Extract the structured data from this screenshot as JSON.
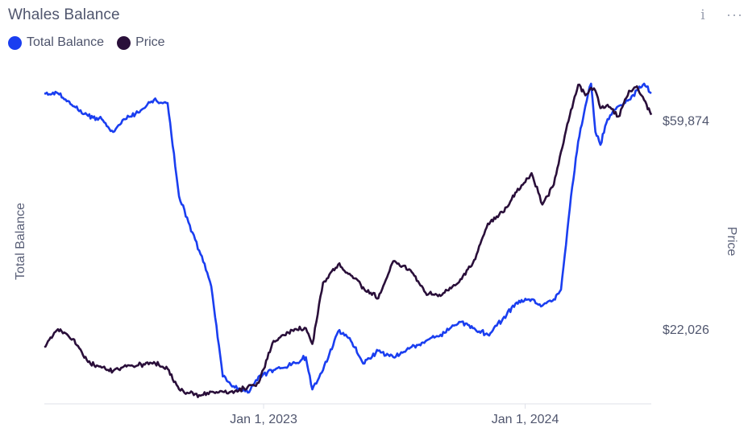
{
  "header": {
    "title": "Whales Balance",
    "info_icon": "info-icon",
    "more_icon": "more-options-icon"
  },
  "colors": {
    "total_balance": "#1a3ef0",
    "price": "#2a0f3a",
    "axis": "#dfe2ea",
    "tick_text": "#50566e"
  },
  "chart_data": {
    "type": "line",
    "xlabel": "",
    "ylabel_left": "Total Balance",
    "ylabel_right": "Price",
    "x_ticks": [
      "Jan 1, 2023",
      "Jan 1, 2024"
    ],
    "x_range": [
      "2022-03-01",
      "2024-06-25"
    ],
    "y_right_ticks": [
      "$59,874",
      "$22,026"
    ],
    "y_right_log_scale": true,
    "y_right_range": [
      15500,
      72500
    ],
    "y_left_range": [
      0,
      100
    ],
    "grid": false,
    "legend_position": "top-left",
    "series": [
      {
        "name": "Total Balance",
        "axis": "left",
        "points": [
          [
            "2022-03-01",
            96
          ],
          [
            "2022-03-20",
            96
          ],
          [
            "2022-04-10",
            92
          ],
          [
            "2022-05-01",
            89
          ],
          [
            "2022-05-20",
            88
          ],
          [
            "2022-06-05",
            84
          ],
          [
            "2022-06-20",
            88
          ],
          [
            "2022-07-10",
            90
          ],
          [
            "2022-08-01",
            94
          ],
          [
            "2022-08-20",
            93
          ],
          [
            "2022-09-05",
            64
          ],
          [
            "2022-09-20",
            55
          ],
          [
            "2022-10-05",
            46
          ],
          [
            "2022-10-20",
            36
          ],
          [
            "2022-11-05",
            8
          ],
          [
            "2022-11-20",
            5
          ],
          [
            "2022-12-10",
            3
          ],
          [
            "2022-12-25",
            8
          ],
          [
            "2023-01-15",
            10
          ],
          [
            "2023-02-10",
            12
          ],
          [
            "2023-03-01",
            14
          ],
          [
            "2023-03-10",
            4
          ],
          [
            "2023-03-25",
            10
          ],
          [
            "2023-04-15",
            22
          ],
          [
            "2023-05-01",
            20
          ],
          [
            "2023-05-20",
            12
          ],
          [
            "2023-06-10",
            16
          ],
          [
            "2023-07-01",
            14
          ],
          [
            "2023-07-25",
            17
          ],
          [
            "2023-08-15",
            19
          ],
          [
            "2023-09-05",
            21
          ],
          [
            "2023-10-01",
            25
          ],
          [
            "2023-10-20",
            23
          ],
          [
            "2023-11-10",
            21
          ],
          [
            "2023-12-01",
            26
          ],
          [
            "2023-12-20",
            31
          ],
          [
            "2024-01-10",
            32
          ],
          [
            "2024-01-25",
            30
          ],
          [
            "2024-02-10",
            32
          ],
          [
            "2024-02-20",
            35
          ],
          [
            "2024-03-05",
            64
          ],
          [
            "2024-03-15",
            81
          ],
          [
            "2024-03-25",
            92
          ],
          [
            "2024-04-02",
            99
          ],
          [
            "2024-04-08",
            84
          ],
          [
            "2024-04-15",
            80
          ],
          [
            "2024-04-25",
            88
          ],
          [
            "2024-05-10",
            92
          ],
          [
            "2024-05-25",
            94
          ],
          [
            "2024-06-05",
            97
          ],
          [
            "2024-06-15",
            99
          ],
          [
            "2024-06-25",
            96
          ]
        ]
      },
      {
        "name": "Price",
        "axis": "right",
        "points": [
          [
            "2022-03-01",
            20200
          ],
          [
            "2022-03-20",
            22000
          ],
          [
            "2022-04-10",
            21000
          ],
          [
            "2022-05-01",
            18800
          ],
          [
            "2022-05-20",
            18300
          ],
          [
            "2022-06-05",
            18000
          ],
          [
            "2022-06-20",
            18400
          ],
          [
            "2022-07-10",
            18500
          ],
          [
            "2022-08-01",
            18800
          ],
          [
            "2022-08-20",
            18200
          ],
          [
            "2022-09-05",
            16500
          ],
          [
            "2022-09-20",
            16200
          ],
          [
            "2022-10-05",
            16000
          ],
          [
            "2022-10-20",
            16300
          ],
          [
            "2022-11-05",
            16300
          ],
          [
            "2022-11-20",
            16200
          ],
          [
            "2022-12-10",
            16700
          ],
          [
            "2022-12-25",
            17000
          ],
          [
            "2023-01-15",
            20800
          ],
          [
            "2023-02-10",
            21900
          ],
          [
            "2023-03-01",
            22100
          ],
          [
            "2023-03-10",
            20500
          ],
          [
            "2023-03-25",
            27500
          ],
          [
            "2023-04-15",
            30000
          ],
          [
            "2023-05-01",
            28700
          ],
          [
            "2023-05-20",
            26900
          ],
          [
            "2023-06-10",
            25500
          ],
          [
            "2023-07-01",
            30500
          ],
          [
            "2023-07-25",
            29200
          ],
          [
            "2023-08-15",
            26200
          ],
          [
            "2023-09-05",
            25800
          ],
          [
            "2023-10-01",
            27600
          ],
          [
            "2023-10-20",
            30200
          ],
          [
            "2023-11-10",
            36500
          ],
          [
            "2023-12-01",
            38500
          ],
          [
            "2023-12-20",
            42500
          ],
          [
            "2024-01-10",
            46500
          ],
          [
            "2024-01-25",
            40000
          ],
          [
            "2024-02-10",
            44000
          ],
          [
            "2024-02-20",
            51500
          ],
          [
            "2024-03-05",
            63000
          ],
          [
            "2024-03-15",
            71000
          ],
          [
            "2024-03-25",
            67500
          ],
          [
            "2024-04-02",
            70000
          ],
          [
            "2024-04-08",
            69000
          ],
          [
            "2024-04-15",
            63500
          ],
          [
            "2024-04-25",
            64500
          ],
          [
            "2024-05-10",
            61000
          ],
          [
            "2024-05-25",
            69000
          ],
          [
            "2024-06-05",
            70500
          ],
          [
            "2024-06-15",
            66000
          ],
          [
            "2024-06-25",
            61500
          ]
        ]
      }
    ]
  }
}
